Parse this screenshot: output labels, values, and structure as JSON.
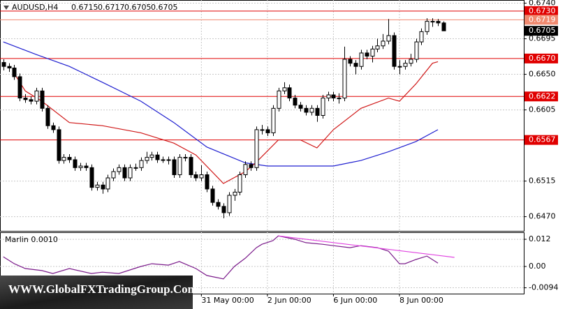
{
  "chart_data": {
    "type": "candlestick",
    "symbol": "AUDUSD,H4",
    "color_up": "#ffffff",
    "color_down": "#000000",
    "candles": [
      [
        0.6665,
        0.6669,
        0.6655,
        0.666
      ],
      [
        0.666,
        0.6664,
        0.6653,
        0.6658
      ],
      [
        0.6658,
        0.6662,
        0.6643,
        0.6647
      ],
      [
        0.6647,
        0.6651,
        0.6616,
        0.662
      ],
      [
        0.662,
        0.6625,
        0.6614,
        0.6618
      ],
      [
        0.6618,
        0.6622,
        0.6612,
        0.6616
      ],
      [
        0.6616,
        0.6633,
        0.6612,
        0.6629
      ],
      [
        0.6629,
        0.6633,
        0.6603,
        0.6607
      ],
      [
        0.6607,
        0.6611,
        0.6581,
        0.6585
      ],
      [
        0.6585,
        0.6589,
        0.6576,
        0.658
      ],
      [
        0.658,
        0.6584,
        0.6537,
        0.6541
      ],
      [
        0.6541,
        0.6549,
        0.6537,
        0.6545
      ],
      [
        0.6545,
        0.6549,
        0.6538,
        0.6542
      ],
      [
        0.6542,
        0.6546,
        0.6528,
        0.6532
      ],
      [
        0.6532,
        0.6538,
        0.6528,
        0.6534
      ],
      [
        0.6534,
        0.6538,
        0.6528,
        0.6532
      ],
      [
        0.6532,
        0.6536,
        0.6503,
        0.6507
      ],
      [
        0.6507,
        0.6514,
        0.6503,
        0.651
      ],
      [
        0.651,
        0.6514,
        0.6499,
        0.6505
      ],
      [
        0.6505,
        0.6523,
        0.6501,
        0.6519
      ],
      [
        0.6519,
        0.6531,
        0.6515,
        0.6527
      ],
      [
        0.6527,
        0.6536,
        0.6523,
        0.6532
      ],
      [
        0.6532,
        0.6536,
        0.6515,
        0.6519
      ],
      [
        0.6519,
        0.6536,
        0.6515,
        0.6532
      ],
      [
        0.6532,
        0.6537,
        0.6528,
        0.6532
      ],
      [
        0.6532,
        0.6545,
        0.6528,
        0.6541
      ],
      [
        0.6541,
        0.6552,
        0.6537,
        0.6545
      ],
      [
        0.6545,
        0.6552,
        0.6541,
        0.6548
      ],
      [
        0.6548,
        0.6552,
        0.6538,
        0.6542
      ],
      [
        0.6542,
        0.6546,
        0.6538,
        0.6542
      ],
      [
        0.6542,
        0.6546,
        0.6536,
        0.6542
      ],
      [
        0.6542,
        0.6546,
        0.6519,
        0.6523
      ],
      [
        0.6523,
        0.6549,
        0.6519,
        0.6545
      ],
      [
        0.6545,
        0.6549,
        0.654,
        0.6545
      ],
      [
        0.6545,
        0.6549,
        0.6519,
        0.6523
      ],
      [
        0.6523,
        0.6527,
        0.6515,
        0.6519
      ],
      [
        0.6519,
        0.6535,
        0.6515,
        0.6523
      ],
      [
        0.6523,
        0.6527,
        0.6501,
        0.6505
      ],
      [
        0.6505,
        0.6509,
        0.6484,
        0.6488
      ],
      [
        0.6488,
        0.6492,
        0.6479,
        0.6483
      ],
      [
        0.6483,
        0.6487,
        0.6468,
        0.6475
      ],
      [
        0.6475,
        0.6501,
        0.6471,
        0.6497
      ],
      [
        0.6497,
        0.6505,
        0.649,
        0.6501
      ],
      [
        0.6501,
        0.6527,
        0.6497,
        0.6523
      ],
      [
        0.6523,
        0.654,
        0.6519,
        0.6536
      ],
      [
        0.6536,
        0.654,
        0.6528,
        0.6532
      ],
      [
        0.6532,
        0.6584,
        0.6528,
        0.658
      ],
      [
        0.658,
        0.6586,
        0.6574,
        0.658
      ],
      [
        0.658,
        0.6584,
        0.6572,
        0.6576
      ],
      [
        0.6576,
        0.6611,
        0.6572,
        0.6607
      ],
      [
        0.6607,
        0.6633,
        0.6603,
        0.6629
      ],
      [
        0.6629,
        0.664,
        0.6625,
        0.6633
      ],
      [
        0.6633,
        0.6637,
        0.6616,
        0.662
      ],
      [
        0.662,
        0.6624,
        0.6607,
        0.6611
      ],
      [
        0.6611,
        0.6615,
        0.6603,
        0.6607
      ],
      [
        0.6607,
        0.6611,
        0.6598,
        0.6602
      ],
      [
        0.6602,
        0.6611,
        0.6598,
        0.6607
      ],
      [
        0.6607,
        0.6611,
        0.659,
        0.6598
      ],
      [
        0.6598,
        0.6624,
        0.6594,
        0.662
      ],
      [
        0.662,
        0.6628,
        0.6616,
        0.6624
      ],
      [
        0.6624,
        0.6628,
        0.6616,
        0.662
      ],
      [
        0.662,
        0.6626,
        0.6613,
        0.662
      ],
      [
        0.662,
        0.6685,
        0.6616,
        0.6669
      ],
      [
        0.6669,
        0.6673,
        0.666,
        0.6664
      ],
      [
        0.6664,
        0.6668,
        0.665,
        0.666
      ],
      [
        0.666,
        0.6681,
        0.6656,
        0.6677
      ],
      [
        0.6677,
        0.6681,
        0.6669,
        0.6673
      ],
      [
        0.6673,
        0.6686,
        0.6665,
        0.6682
      ],
      [
        0.6682,
        0.6695,
        0.6678,
        0.6686
      ],
      [
        0.6686,
        0.6701,
        0.6682,
        0.6692
      ],
      [
        0.6692,
        0.672,
        0.6688,
        0.6699
      ],
      [
        0.6699,
        0.6703,
        0.6656,
        0.666
      ],
      [
        0.666,
        0.6668,
        0.665,
        0.666
      ],
      [
        0.666,
        0.6668,
        0.6656,
        0.6664
      ],
      [
        0.6664,
        0.6676,
        0.666,
        0.6669
      ],
      [
        0.6669,
        0.6695,
        0.6665,
        0.6691
      ],
      [
        0.6691,
        0.6708,
        0.6687,
        0.6704
      ],
      [
        0.6704,
        0.6721,
        0.67,
        0.6717
      ],
      [
        0.6717,
        0.6721,
        0.671,
        0.6717
      ],
      [
        0.6717,
        0.672,
        0.6711,
        0.6715
      ],
      [
        0.6715,
        0.6717,
        0.6705,
        0.6705
      ]
    ],
    "xlim": [
      -0.6,
      94.6
    ],
    "xticks": [
      {
        "value": 36,
        "label": "31 May 00:00"
      },
      {
        "value": 48,
        "label": "2 Jun 00:00"
      },
      {
        "value": 60,
        "label": "6 Jun 00:00"
      },
      {
        "value": 72,
        "label": "8 Jun 00:00"
      }
    ],
    "ylim": [
      0.6452,
      0.6744
    ],
    "yticks": [
      {
        "value": 0.674,
        "label": "0.6740"
      },
      0.6695,
      {
        "value": 0.665,
        "label": "0.6650"
      },
      0.6605,
      0.6515,
      {
        "value": 0.647,
        "label": "0.6470"
      }
    ],
    "grid": true,
    "series": [
      {
        "color": "#1f1fd0",
        "x": [
          0,
          6,
          12,
          18,
          25,
          31,
          37,
          44,
          48,
          60,
          65,
          70,
          75,
          79
        ],
        "values": [
          0.6691,
          0.6675,
          0.666,
          0.664,
          0.6616,
          0.6589,
          0.6558,
          0.6538,
          0.6534,
          0.6534,
          0.6541,
          0.6552,
          0.6565,
          0.658
        ]
      },
      {
        "color": "#d01818",
        "x": [
          2,
          4,
          7,
          12,
          18,
          25,
          31,
          35,
          40,
          44,
          46,
          50,
          54,
          57,
          60,
          65,
          70,
          72,
          75,
          78,
          79
        ],
        "values": [
          0.6651,
          0.6629,
          0.6616,
          0.6589,
          0.6585,
          0.6576,
          0.6563,
          0.6548,
          0.6512,
          0.6527,
          0.6539,
          0.6567,
          0.6567,
          0.6557,
          0.658,
          0.6607,
          0.662,
          0.6616,
          0.6638,
          0.6664,
          0.6666
        ]
      }
    ],
    "levels": [
      {
        "value": 0.673,
        "label": "0.6730",
        "color": "#e00000"
      },
      {
        "value": 0.6719,
        "label": "0.6719",
        "color": "#f08a70"
      },
      {
        "value": 0.667,
        "label": "0.6670",
        "color": "#e00000"
      },
      {
        "value": 0.6622,
        "label": "0.6622",
        "color": "#e00000"
      },
      {
        "value": 0.6567,
        "label": "0.6567",
        "color": "#e00000"
      }
    ],
    "current_price": 0.6705,
    "indicator": {
      "type": "line",
      "title": "Marlin 0.0010",
      "color": "#7a1a8a",
      "ylim": [
        -0.012,
        0.0151
      ],
      "yticks": [
        0.012,
        {
          "value": 0,
          "label": "0.00"
        },
        -0.0094
      ],
      "x": [
        0,
        2,
        4,
        7,
        9,
        12,
        16,
        18,
        21,
        25,
        27,
        30,
        32,
        35,
        37,
        40,
        42,
        44,
        46,
        47,
        49,
        50,
        53,
        55,
        58,
        60,
        63,
        65,
        68,
        70,
        72,
        73,
        75,
        77,
        79
      ],
      "values": [
        0.0043,
        0.0012,
        -0.0009,
        -0.0018,
        -0.0031,
        -0.0009,
        -0.0031,
        -0.0025,
        -0.0031,
        0.0,
        0.0012,
        0.0006,
        0.0022,
        -0.0009,
        -0.004,
        -0.0055,
        0.0,
        0.0037,
        0.0083,
        0.0098,
        0.0114,
        0.0135,
        0.012,
        0.0105,
        0.0098,
        0.0092,
        0.0083,
        0.0092,
        0.0083,
        0.0068,
        0.0012,
        0.0012,
        0.0031,
        0.0046,
        0.0015
      ],
      "trendline": {
        "color": "#e040e0",
        "x": [
          50,
          82
        ],
        "values": [
          0.0135,
          0.004
        ]
      }
    },
    "watermark": "WWW.GlobalFXTradingGroup.Com"
  }
}
